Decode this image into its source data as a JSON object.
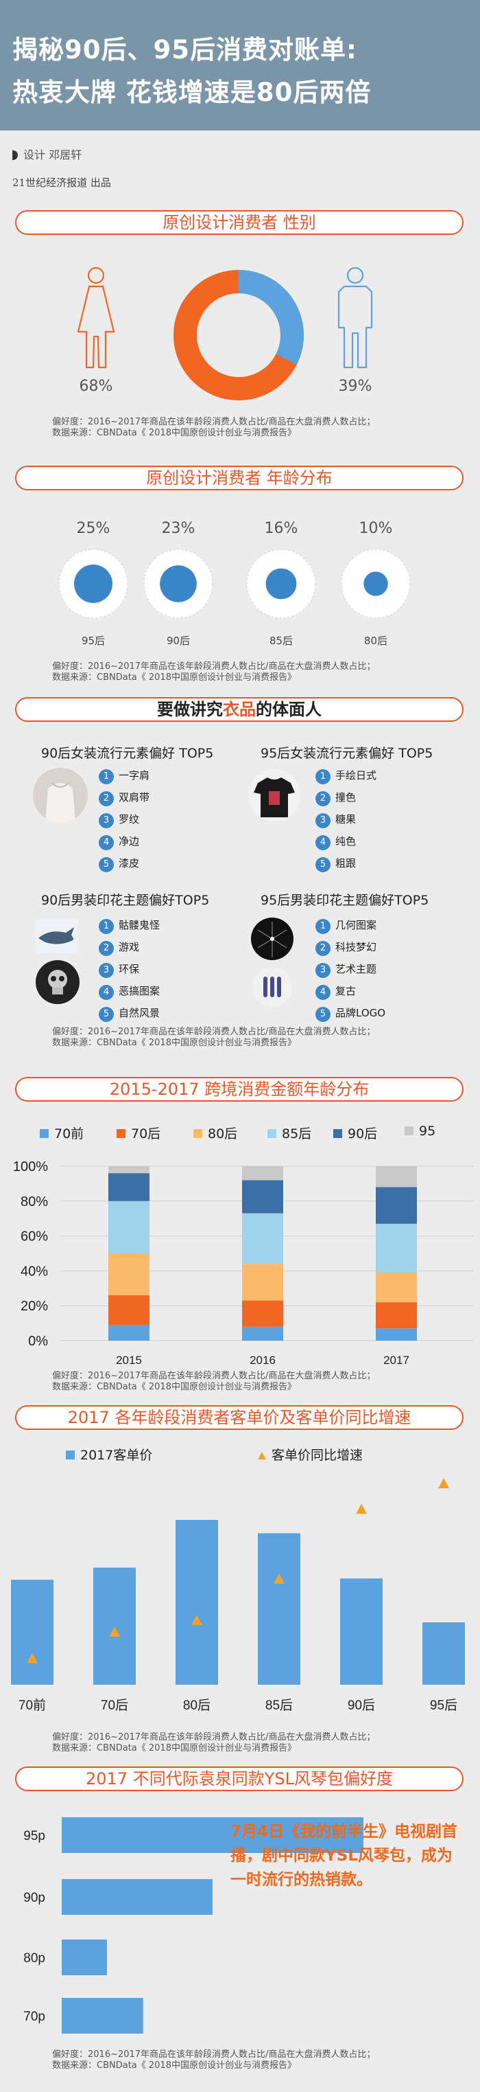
{
  "header": {
    "title_line1": "揭秘90后、95后消费对账单:",
    "title_line2": "热衷大牌 花钱增速是80后两倍",
    "byline": "设计  邓居轩",
    "publisher": "21世纪经济报道  出品"
  },
  "note": {
    "line1": "偏好度：2016~2017年商品在该年龄段消费人数占比/商品在大盘消费人数占比；",
    "line2": "数据来源：CBNData《 2018中国原创设计创业与消费报告》"
  },
  "gender_section": {
    "title": "原创设计消费者 性别",
    "female_pct": "68%",
    "male_pct": "39%",
    "colors": {
      "female": "#f26522",
      "male": "#5ba3de"
    }
  },
  "age_section": {
    "title": "原创设计消费者 年龄分布",
    "groups": [
      {
        "pct_label": "25%",
        "value": 25,
        "label": "95后"
      },
      {
        "pct_label": "23%",
        "value": 23,
        "label": "90后"
      },
      {
        "pct_label": "16%",
        "value": 16,
        "label": "85后"
      },
      {
        "pct_label": "10%",
        "value": 10,
        "label": "80后"
      }
    ]
  },
  "clothing_section": {
    "title_pre": "要做讲究",
    "title_em": "衣品",
    "title_post": "的体面人",
    "blocks": [
      {
        "title": "90后女装流行元素偏好 TOP5",
        "items": [
          "一字肩",
          "双肩带",
          "罗纹",
          "净边",
          "漆皮"
        ]
      },
      {
        "title": "95后女装流行元素偏好 TOP5",
        "items": [
          "手绘日式",
          "撞色",
          "糖果",
          "纯色",
          "粗跟"
        ]
      },
      {
        "title": "90后男装印花主题偏好TOP5",
        "items": [
          "骷髅鬼怪",
          "游戏",
          "环保",
          "恶搞图案",
          "自然风景"
        ]
      },
      {
        "title": "95后男装印花主题偏好TOP5",
        "items": [
          "几何图案",
          "科技梦幻",
          "艺术主题",
          "复古",
          "品牌LOGO"
        ]
      }
    ]
  },
  "stacked_section": {
    "title": "2015-2017 跨境消费金额年龄分布"
  },
  "unit_price_section": {
    "title": "2017 各年龄段消费者客单价及客单价同比增速"
  },
  "ysl_section": {
    "title": "2017 不同代际袁泉同款YSL风琴包偏好度",
    "callout": "7月4日《我的前半生》电视剧首播，剧中同款YSL风琴包，成为一时流行的热销款。"
  },
  "chart_data": [
    {
      "type": "bar",
      "stacked": true,
      "percent": true,
      "categories": [
        "2015",
        "2016",
        "2017"
      ],
      "series": [
        {
          "name": "70前",
          "color": "#5ba3de",
          "values": [
            9,
            8,
            7
          ]
        },
        {
          "name": "70后",
          "color": "#f26522",
          "values": [
            17,
            15,
            15
          ]
        },
        {
          "name": "80后",
          "color": "#fbb96a",
          "values": [
            24,
            21,
            17
          ]
        },
        {
          "name": "85后",
          "color": "#9fd3ec",
          "values": [
            30,
            29,
            28
          ]
        },
        {
          "name": "90后",
          "color": "#3a6fa8",
          "values": [
            16,
            19,
            21
          ]
        },
        {
          "name": "95",
          "color": "#c9c9c9",
          "values": [
            4,
            8,
            12
          ]
        }
      ],
      "ylim": [
        0,
        100
      ],
      "yticks": [
        "0%",
        "20%",
        "40%",
        "60%",
        "80%",
        "100%"
      ],
      "legend": "top"
    },
    {
      "type": "bar",
      "categories": [
        "70前",
        "70后",
        "80后",
        "85后",
        "90后",
        "95后"
      ],
      "series": [
        {
          "name": "2017客单价",
          "color": "#5ba3de",
          "kind": "bar",
          "values": [
            165,
            184,
            259,
            238,
            167,
            98
          ]
        },
        {
          "name": "客单价同比增速",
          "color": "#f7a12b",
          "kind": "triangle",
          "values": [
            12,
            42,
            55,
            102,
            181,
            210
          ]
        }
      ],
      "legend": "top"
    },
    {
      "type": "bar",
      "orientation": "horizontal",
      "categories": [
        "95p",
        "90p",
        "80p",
        "70p"
      ],
      "values": [
        100,
        50,
        15,
        27
      ],
      "color": "#5ba3de"
    }
  ]
}
